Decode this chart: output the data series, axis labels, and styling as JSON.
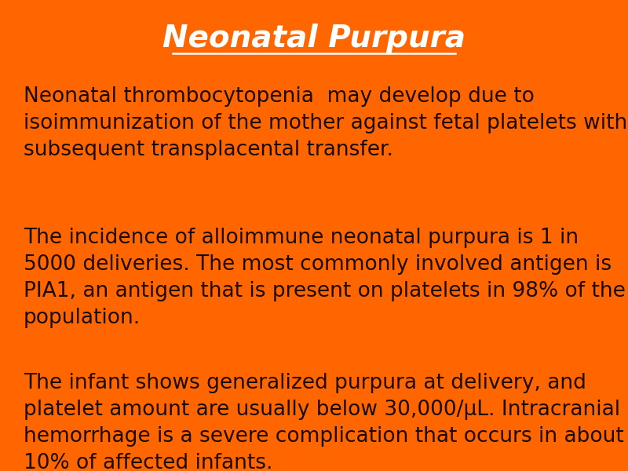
{
  "background_color": "#FF6600",
  "title": "Neonatal Purpura",
  "title_color": "#FFFFFF",
  "title_fontsize": 28,
  "title_fontstyle": "italic",
  "title_fontweight": "bold",
  "body_color": "#1a0a00",
  "body_fontsize": 19,
  "paragraphs": [
    "Neonatal thrombocytopenia  may develop due to\nisoimmunization of the mother against fetal platelets with\nsubsequent transplacental transfer.",
    "The incidence of alloimmune neonatal purpura is 1 in\n5000 deliveries. The most commonly involved antigen is\nPIA1, an antigen that is present on platelets in 98% of the\npopulation.",
    "The infant shows generalized purpura at delivery, and\nplatelet amount are usually below 30,000/μL. Intracranial\nhemorrhage is a severe complication that occurs in about\n10% of affected infants."
  ],
  "fig_width": 8.0,
  "fig_height": 6.0,
  "dpi": 100
}
